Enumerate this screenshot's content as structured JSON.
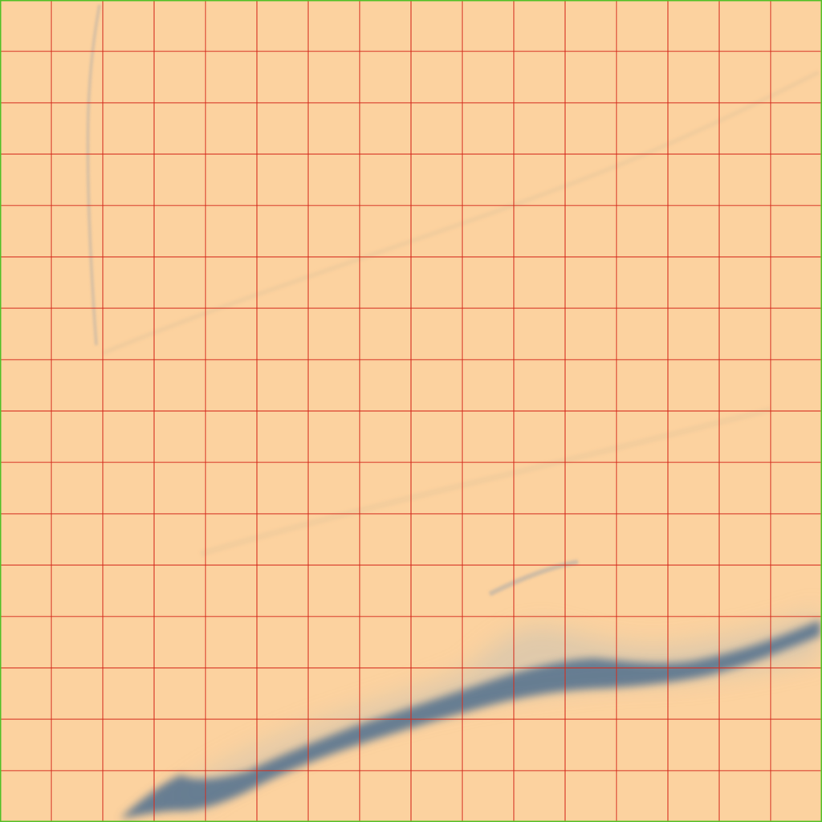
{
  "colors": {
    "background": "#fcd29f",
    "grid_line": "#d42a1c",
    "frame": "#56c02a",
    "streak_dark": "#5f7890",
    "streak_haze": "#c8c2b4",
    "faint_line": "#d9bf98"
  },
  "grid": {
    "columns": 16,
    "rows": 16
  },
  "features": [
    {
      "name": "dark-streak",
      "kind": "dark band rising from bottom-left to right edge"
    },
    {
      "name": "haze",
      "kind": "soft diffuse plume above the dark band"
    },
    {
      "name": "faint-vertical-line",
      "kind": "thin faint line near left, top area"
    },
    {
      "name": "faint-diagonal-lines",
      "kind": "very faint diagonal strokes in mid area"
    }
  ]
}
